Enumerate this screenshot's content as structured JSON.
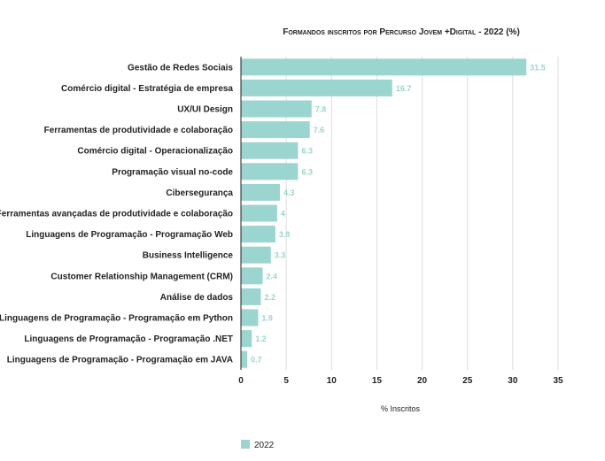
{
  "chart_data": {
    "type": "bar",
    "orientation": "horizontal",
    "title": "Formandos inscritos por Percurso Jovem +Digital - 2022 (%)",
    "xlabel": "% Inscritos",
    "ylabel": "",
    "xlim": [
      0,
      35
    ],
    "xticks": [
      0,
      5,
      10,
      15,
      20,
      25,
      30,
      35
    ],
    "grid": true,
    "legend_position": "bottom-left",
    "categories": [
      "Gestão de Redes Sociais",
      "Comércio digital - Estratégia de empresa",
      "UX/UI Design",
      "Ferramentas de produtividade e colaboração",
      "Comércio digital - Operacionalização",
      "Programação visual no-code",
      "Cibersegurança",
      "Ferramentas avançadas de produtividade e colaboração",
      "Linguagens de Programação - Programação Web",
      "Business Intelligence",
      "Customer Relationship Management (CRM)",
      "Análise de dados",
      "Linguagens de Programação - Programação em Python",
      "Linguagens de Programação - Programação .NET",
      "Linguagens de Programação - Programação em JAVA"
    ],
    "series": [
      {
        "name": "2022",
        "color": "#9ad6cf",
        "values": [
          31.5,
          16.7,
          7.8,
          7.6,
          6.3,
          6.3,
          4.3,
          4,
          3.8,
          3.3,
          2.4,
          2.2,
          1.9,
          1.2,
          0.7
        ]
      }
    ]
  }
}
